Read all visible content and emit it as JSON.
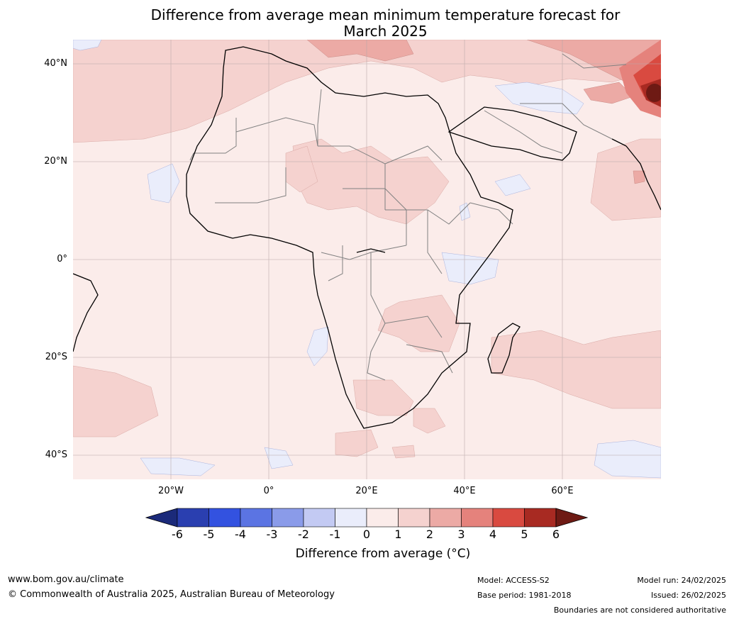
{
  "title": {
    "line1": "Difference from average mean minimum temperature forecast for",
    "line2": "March 2025"
  },
  "lat_labels": [
    "40°N",
    "20°N",
    "0°",
    "20°S",
    "40°S"
  ],
  "lon_labels": [
    "20°W",
    "0°",
    "20°E",
    "40°E",
    "60°E"
  ],
  "colorbar": {
    "title": "Difference from average (°C)",
    "ticks": [
      "-6",
      "-5",
      "-4",
      "-3",
      "-2",
      "-1",
      "0",
      "1",
      "2",
      "3",
      "4",
      "5",
      "6"
    ],
    "colors": [
      "#1b2a7a",
      "#2a3fb0",
      "#3352e0",
      "#5b74e3",
      "#8a9be9",
      "#c3caf3",
      "#eaedfb",
      "#fbecea",
      "#f5d2cf",
      "#ecaaa5",
      "#e5827c",
      "#d94a40",
      "#a82a22",
      "#6e1a14"
    ]
  },
  "footer": {
    "website": "www.bom.gov.au/climate",
    "copyright": "© Commonwealth of Australia 2025, Australian Bureau of Meteorology",
    "model": "Model: ACCESS-S2",
    "base_period": "Base period: 1981-2018",
    "model_run": "Model run: 24/02/2025",
    "issued": "Issued: 26/02/2025",
    "disclaimer": "Boundaries are not considered authoritative"
  }
}
